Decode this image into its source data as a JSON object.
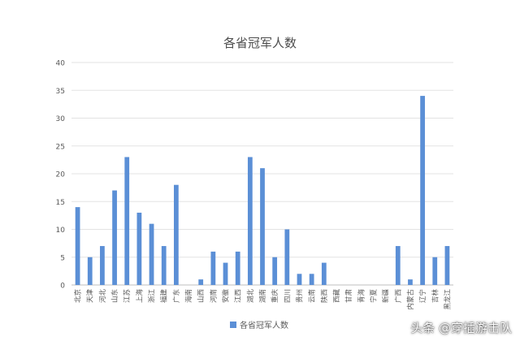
{
  "chart_data": {
    "type": "bar",
    "title": "各省冠军人数",
    "categories": [
      "北京",
      "天津",
      "河北",
      "山东",
      "江苏",
      "上海",
      "浙江",
      "福建",
      "广东",
      "海南",
      "山西",
      "河南",
      "安徽",
      "江西",
      "湖北",
      "湖南",
      "重庆",
      "四川",
      "贵州",
      "云南",
      "陕西",
      "西藏",
      "甘肃",
      "青海",
      "宁夏",
      "新疆",
      "广西",
      "内蒙古",
      "辽宁",
      "吉林",
      "黑龙江"
    ],
    "series": [
      {
        "name": "各省冠军人数",
        "values": [
          14,
          5,
          7,
          17,
          23,
          13,
          11,
          7,
          18,
          0,
          1,
          6,
          4,
          6,
          23,
          21,
          5,
          10,
          2,
          2,
          4,
          0,
          0,
          0,
          0,
          0,
          7,
          1,
          34,
          5,
          7
        ]
      }
    ],
    "ylim": [
      0,
      40
    ],
    "yticks": [
      0,
      5,
      10,
      15,
      20,
      25,
      30,
      35,
      40
    ],
    "grid": true,
    "legend": "bottom",
    "colors": {
      "bar": "#5b8fd6",
      "grid": "#e3e3e3",
      "axis": "#bfbfbf",
      "text": "#595959",
      "title": "#4d4d4d"
    }
  },
  "watermark": "头条 @穿插游击队"
}
